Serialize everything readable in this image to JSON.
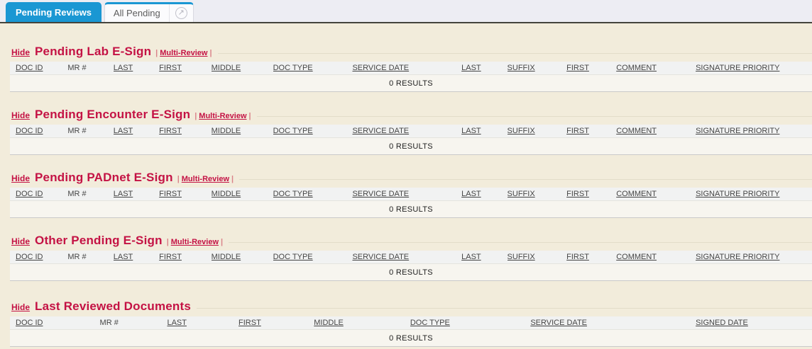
{
  "tabs": {
    "items": [
      {
        "label": "Pending Reviews",
        "active": true
      },
      {
        "label": "All Pending",
        "active": false,
        "icon_glyph": "↗"
      }
    ]
  },
  "pending_columns": [
    {
      "label": "DOC ID",
      "sortable": true
    },
    {
      "label": "MR #",
      "sortable": false
    },
    {
      "label": "LAST",
      "sortable": true
    },
    {
      "label": "FIRST",
      "sortable": true
    },
    {
      "label": "MIDDLE",
      "sortable": true
    },
    {
      "label": "DOC TYPE",
      "sortable": true
    },
    {
      "label": "SERVICE DATE",
      "sortable": true
    },
    {
      "label": "LAST",
      "sortable": true
    },
    {
      "label": "SUFFIX",
      "sortable": true
    },
    {
      "label": "FIRST",
      "sortable": true
    },
    {
      "label": "COMMENT",
      "sortable": true
    },
    {
      "label": "SIGNATURE PRIORITY",
      "sortable": true
    }
  ],
  "last_reviewed_columns": [
    {
      "label": "DOC ID",
      "sortable": true
    },
    {
      "label": "MR #",
      "sortable": false
    },
    {
      "label": "LAST",
      "sortable": true
    },
    {
      "label": "FIRST",
      "sortable": true
    },
    {
      "label": "MIDDLE",
      "sortable": true
    },
    {
      "label": "DOC TYPE",
      "sortable": true
    },
    {
      "label": "SERVICE DATE",
      "sortable": true
    },
    {
      "label": "SIGNED DATE",
      "sortable": true
    }
  ],
  "sections": [
    {
      "hide_label": "Hide",
      "title": "Pending Lab E-Sign",
      "pipe": "|",
      "multi_review_label": "Multi-Review",
      "results_text": "0 RESULTS",
      "columns_ref": "pending_columns",
      "rows": []
    },
    {
      "hide_label": "Hide",
      "title": "Pending Encounter E-Sign",
      "pipe": "|",
      "multi_review_label": "Multi-Review",
      "results_text": "0 RESULTS",
      "columns_ref": "pending_columns",
      "rows": []
    },
    {
      "hide_label": "Hide",
      "title": "Pending PADnet E-Sign",
      "pipe": "|",
      "multi_review_label": "Multi-Review",
      "results_text": "0 RESULTS",
      "columns_ref": "pending_columns",
      "rows": []
    },
    {
      "hide_label": "Hide",
      "title": "Other Pending E-Sign",
      "pipe": "|",
      "multi_review_label": "Multi-Review",
      "results_text": "0 RESULTS",
      "columns_ref": "pending_columns",
      "rows": []
    },
    {
      "hide_label": "Hide",
      "title": "Last Reviewed Documents",
      "pipe": null,
      "multi_review_label": null,
      "results_text": "0 RESULTS",
      "columns_ref": "last_reviewed_columns",
      "rows": []
    }
  ],
  "colors": {
    "accent_blue": "#1a97d3",
    "title_crimson": "#c41244",
    "page_background": "#f2ecdb"
  }
}
